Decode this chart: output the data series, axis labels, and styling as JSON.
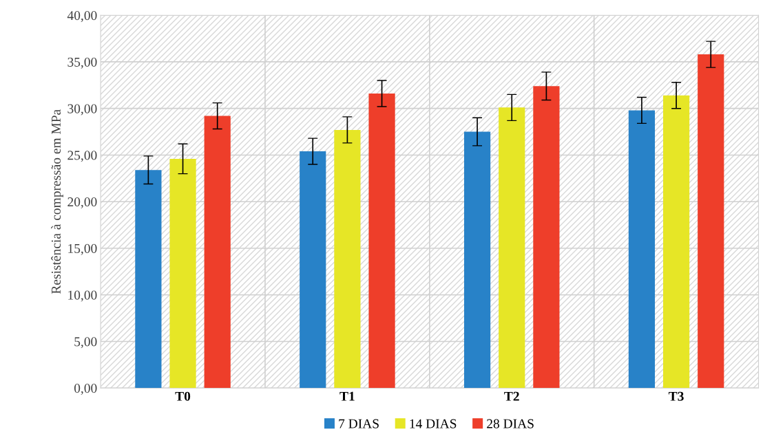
{
  "chart_data": {
    "type": "bar",
    "ylabel": "Resistência à compressão em MPa",
    "categories": [
      "T0",
      "T1",
      "T2",
      "T3"
    ],
    "series": [
      {
        "name": "7 DIAS",
        "color": "#2882c8",
        "values": [
          23.4,
          25.4,
          27.5,
          29.8
        ],
        "errors": [
          1.5,
          1.4,
          1.5,
          1.4
        ]
      },
      {
        "name": "14 DIAS",
        "color": "#e6e626",
        "values": [
          24.6,
          27.7,
          30.1,
          31.4
        ],
        "errors": [
          1.6,
          1.4,
          1.4,
          1.4
        ]
      },
      {
        "name": "28 DIAS",
        "color": "#ee3e2a",
        "values": [
          29.2,
          31.6,
          32.4,
          35.8
        ],
        "errors": [
          1.4,
          1.4,
          1.5,
          1.4
        ]
      }
    ],
    "ylim": [
      0,
      40
    ],
    "yticks": [
      {
        "value": 0,
        "label": "0,00"
      },
      {
        "value": 5,
        "label": "5,00"
      },
      {
        "value": 10,
        "label": "10,00"
      },
      {
        "value": 15,
        "label": "15,00"
      },
      {
        "value": 20,
        "label": "20,00"
      },
      {
        "value": 25,
        "label": "25,00"
      },
      {
        "value": 30,
        "label": "30,00"
      },
      {
        "value": 35,
        "label": "35,00"
      },
      {
        "value": 40,
        "label": "40,00"
      }
    ],
    "grid": true,
    "legend": "bottom"
  }
}
